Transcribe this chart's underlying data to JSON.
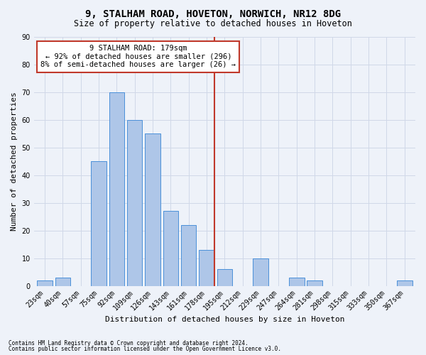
{
  "title1": "9, STALHAM ROAD, HOVETON, NORWICH, NR12 8DG",
  "title2": "Size of property relative to detached houses in Hoveton",
  "xlabel": "Distribution of detached houses by size in Hoveton",
  "ylabel": "Number of detached properties",
  "footnote1": "Contains HM Land Registry data © Crown copyright and database right 2024.",
  "footnote2": "Contains public sector information licensed under the Open Government Licence v3.0.",
  "bar_labels": [
    "23sqm",
    "40sqm",
    "57sqm",
    "75sqm",
    "92sqm",
    "109sqm",
    "126sqm",
    "143sqm",
    "161sqm",
    "178sqm",
    "195sqm",
    "212sqm",
    "229sqm",
    "247sqm",
    "264sqm",
    "281sqm",
    "298sqm",
    "315sqm",
    "333sqm",
    "350sqm",
    "367sqm"
  ],
  "bar_values": [
    2,
    3,
    0,
    45,
    70,
    60,
    55,
    27,
    22,
    13,
    6,
    0,
    10,
    0,
    3,
    2,
    0,
    0,
    0,
    0,
    2
  ],
  "bar_color": "#aec6e8",
  "bar_edge_color": "#4a90d9",
  "vline_color": "#c0392b",
  "annotation_text": "9 STALHAM ROAD: 179sqm\n← 92% of detached houses are smaller (296)\n8% of semi-detached houses are larger (26) →",
  "annotation_box_color": "#c0392b",
  "ylim": [
    0,
    90
  ],
  "yticks": [
    0,
    10,
    20,
    30,
    40,
    50,
    60,
    70,
    80,
    90
  ],
  "grid_color": "#d0d8e8",
  "bg_color": "#eef2f9",
  "title_fontsize": 10,
  "subtitle_fontsize": 8.5,
  "ylabel_fontsize": 8,
  "xlabel_fontsize": 8,
  "tick_fontsize": 7,
  "annotation_fontsize": 7.5,
  "footnote_fontsize": 5.5,
  "vline_bar_index": 9
}
